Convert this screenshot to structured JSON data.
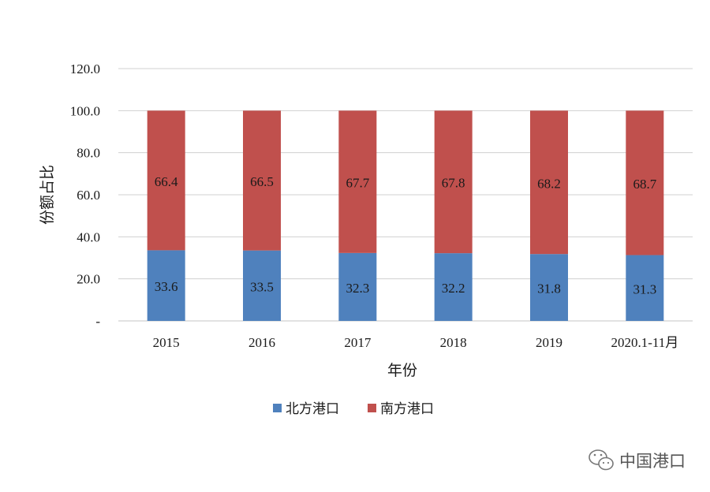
{
  "chart_data": {
    "type": "bar",
    "stacked": true,
    "categories": [
      "2015",
      "2016",
      "2017",
      "2018",
      "2019",
      "2020.1-11月"
    ],
    "series": [
      {
        "name": "北方港口",
        "color": "#4f81bd",
        "values": [
          33.6,
          33.5,
          32.3,
          32.2,
          31.8,
          31.3
        ]
      },
      {
        "name": "南方港口",
        "color": "#c0504d",
        "values": [
          66.4,
          66.5,
          67.7,
          67.8,
          68.2,
          68.7
        ]
      }
    ],
    "xlabel": "年份",
    "ylabel": "份额占比",
    "ylim": [
      0,
      120
    ],
    "yticks": [
      "-",
      "20.0",
      "40.0",
      "60.0",
      "80.0",
      "100.0",
      "120.0"
    ],
    "grid": true,
    "legend_position": "bottom"
  },
  "watermark": {
    "text": "中国港口",
    "icon": "wechat-icon"
  }
}
